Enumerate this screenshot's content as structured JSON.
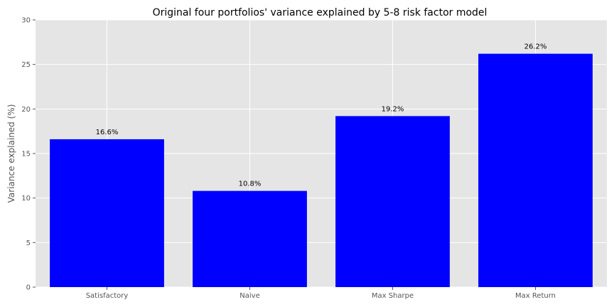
{
  "chart_data": {
    "type": "bar",
    "title": "Original four portfolios' variance explained by 5-8 risk factor model",
    "xlabel": "",
    "ylabel": "Variance explained (%)",
    "categories": [
      "Satisfactory",
      "Naive",
      "Max Sharpe",
      "Max Return"
    ],
    "values": [
      16.6,
      10.8,
      19.2,
      26.2
    ],
    "data_labels": [
      "16.6%",
      "10.8%",
      "19.2%",
      "26.2%"
    ],
    "ylim": [
      0,
      30
    ],
    "yticks": [
      0,
      5,
      10,
      15,
      20,
      25,
      30
    ],
    "grid": true,
    "bar_color": "#0000ff",
    "background_color": "#e5e5e5",
    "grid_color": "#ffffff"
  }
}
